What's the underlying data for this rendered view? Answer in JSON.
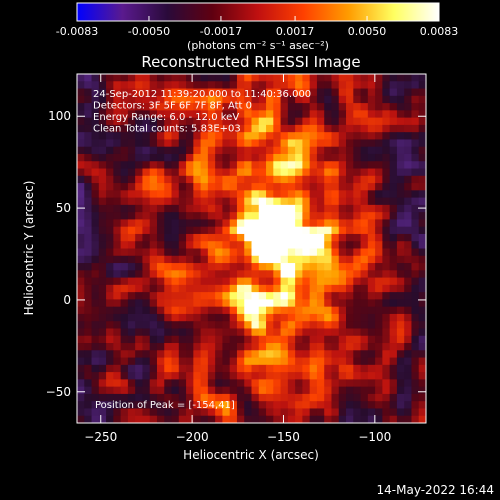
{
  "chart_data": {
    "type": "heatmap",
    "title": "Reconstructed RHESSI Image",
    "xlabel": "Heliocentric X (arcsec)",
    "ylabel": "Heliocentric Y (arcsec)",
    "xlim": [
      -263,
      -72
    ],
    "ylim": [
      -67,
      123
    ],
    "x_ticks": [
      -250,
      -200,
      -150,
      -100
    ],
    "y_ticks": [
      -50,
      0,
      50,
      100
    ],
    "colorbar": {
      "range": [
        -0.0083,
        0.0083
      ],
      "ticks": [
        "-0.0083",
        "-0.0050",
        "-0.0017",
        "0.0017",
        "0.0050",
        "0.0083"
      ],
      "tick_values": [
        -0.0083,
        -0.005,
        -0.0017,
        0.0017,
        0.005,
        0.0083
      ],
      "units_label": "(photons cm⁻² s⁻¹ asec⁻²)",
      "colors": [
        "#0000ff",
        "#5a1a8e",
        "#2a0a3a",
        "#600010",
        "#c01010",
        "#ff4000",
        "#ff9c00",
        "#ffff60",
        "#ffffff"
      ]
    },
    "annotations": [
      "24-Sep-2012 11:39:20.000 to 11:40:36.000",
      "Detectors: 3F 5F 6F 7F 8F, Att 0",
      "Energy Range: 6.0 - 12.0 keV",
      "Clean    Total counts: 5.83E+03"
    ],
    "peak_label": "Position of Peak = [-154,41]",
    "peak": {
      "x": -154,
      "y": 41,
      "value": 0.0083
    },
    "timestamp": "14-May-2022 16:44",
    "grid": false
  }
}
